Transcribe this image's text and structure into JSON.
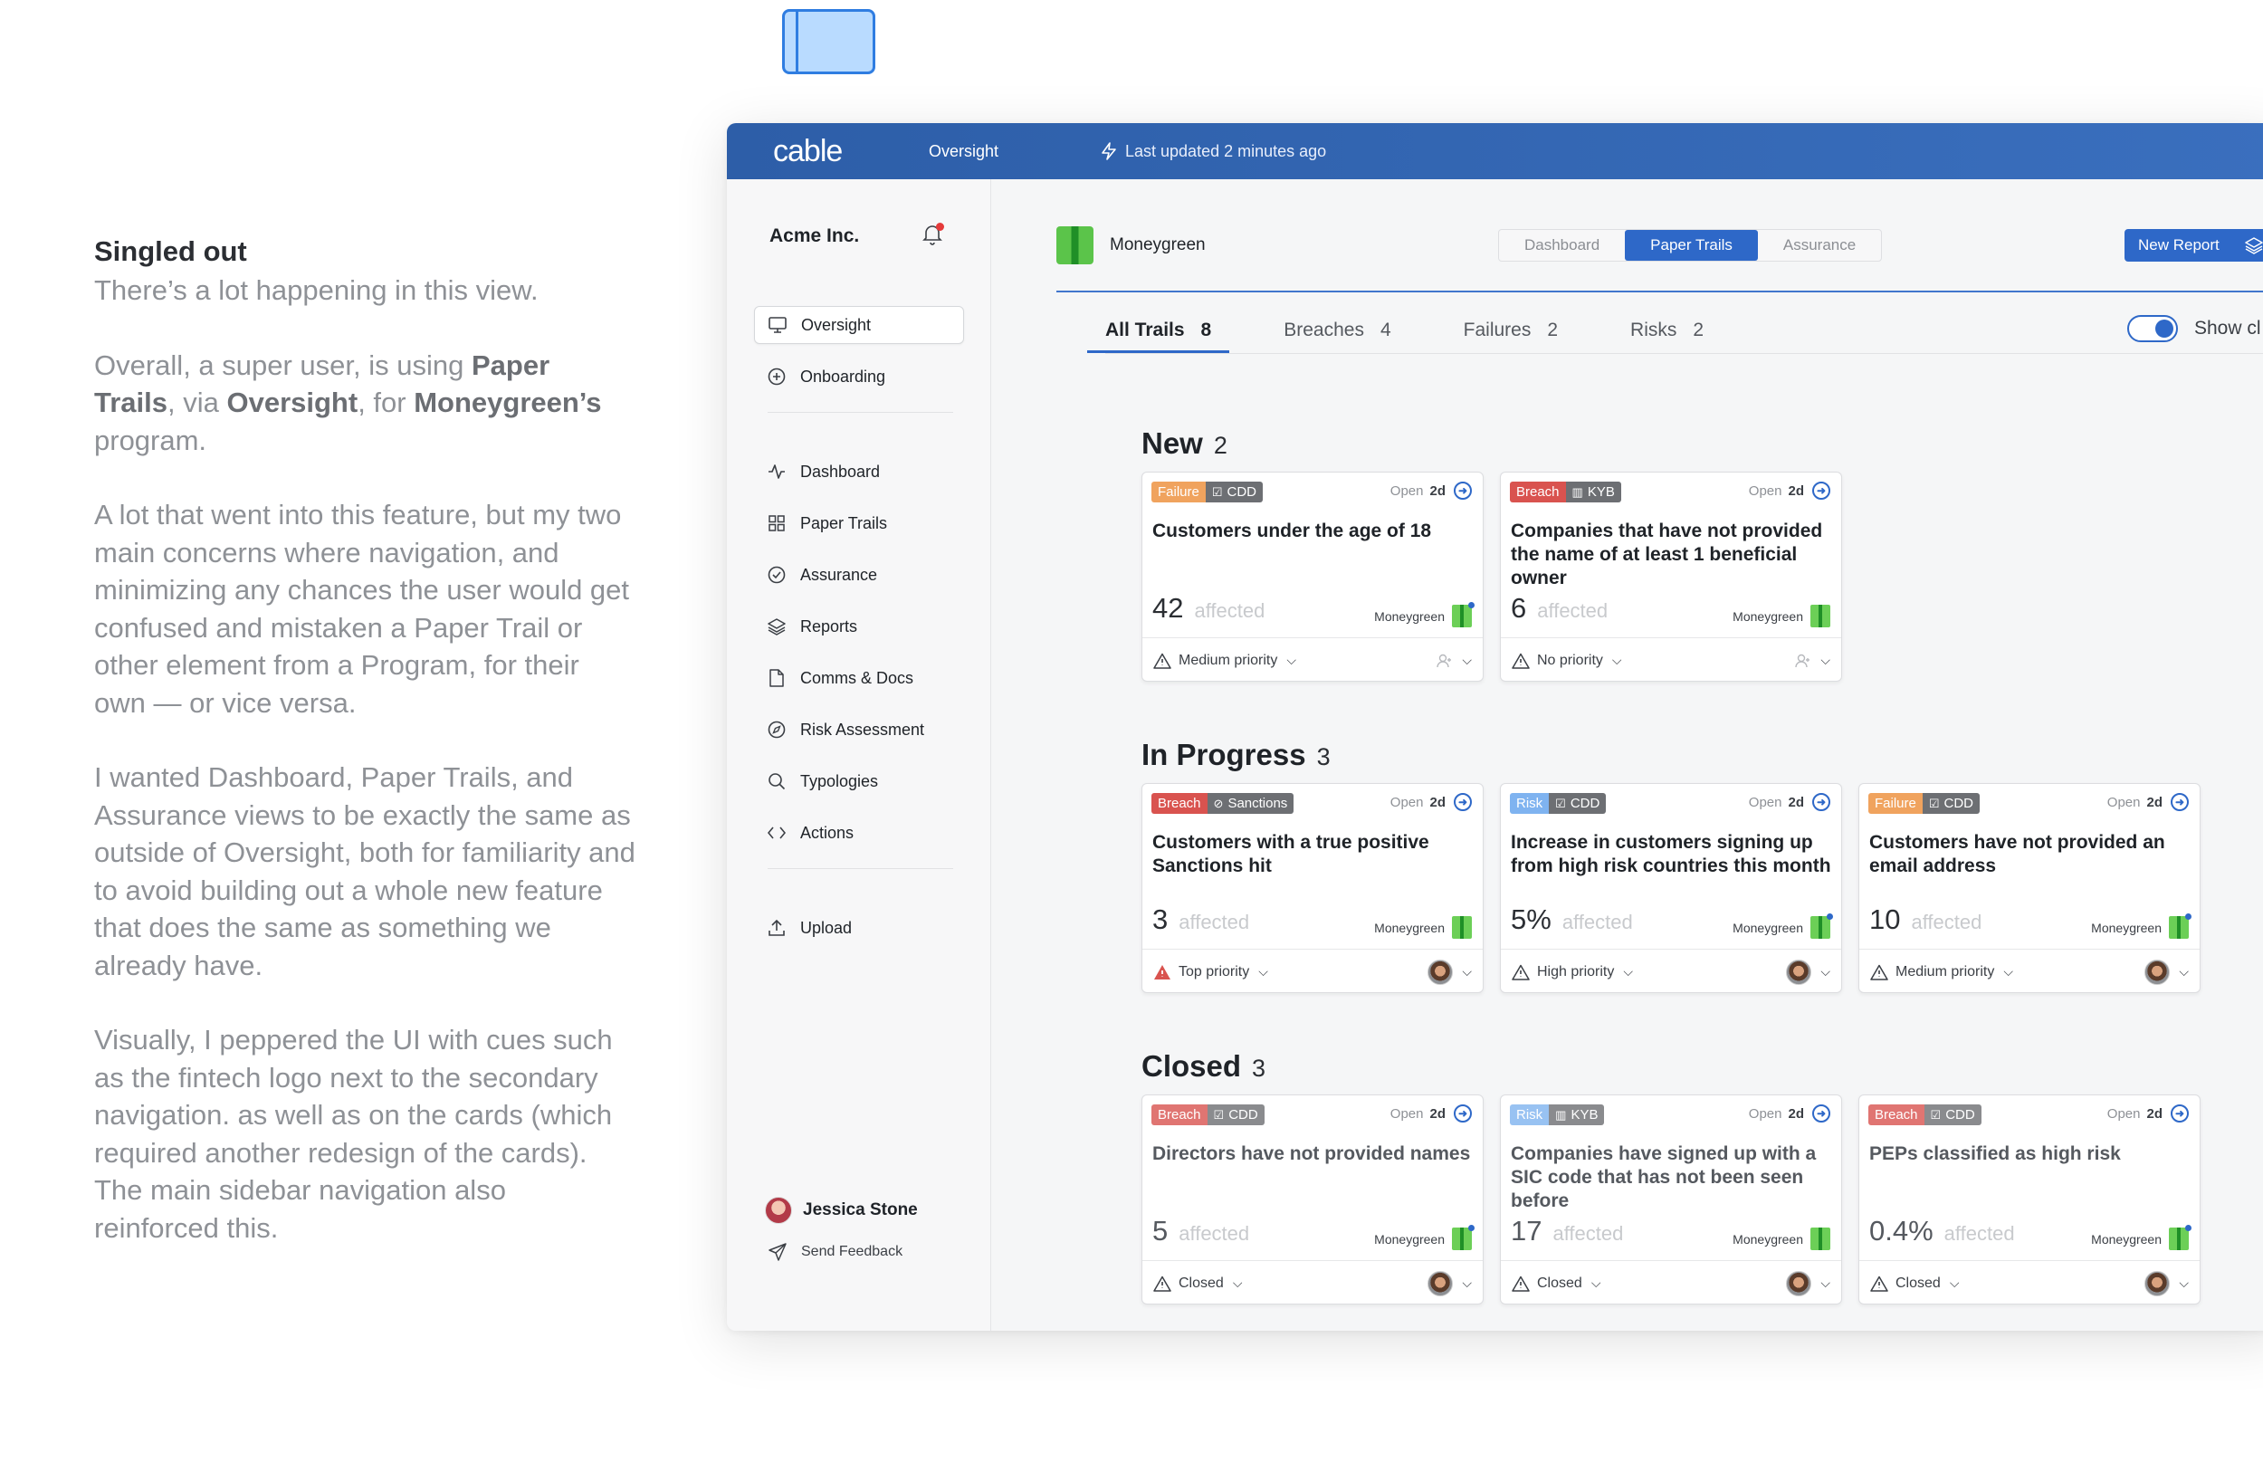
{
  "story": {
    "heading": "Singled out",
    "p1": "There’s a lot happening in this view.",
    "p2_a": "Overall, a super user, is using ",
    "p2_b": "Paper Trails",
    "p2_c": ", via ",
    "p2_d": "Oversight",
    "p2_e": ", for ",
    "p2_f": "Moneygreen’s",
    "p2_g": " program.",
    "p3": "A lot that went into this feature, but my two main concerns where navigation, and minimizing any chances the user would get confused and mistaken a Paper Trail or other element from a Program, for their own — or vice versa.",
    "p4": "I wanted Dashboard, Paper Trails, and Assurance views to be exactly the same as outside of Oversight, both for familiarity and to avoid building out a whole new feature that does the same as something we already have.",
    "p5": "Visually, I peppered the UI with cues such as the fintech logo next to the secondary navigation. as well as on the cards (which required another redesign of the cards). The main sidebar navigation also reinforced this."
  },
  "topbar": {
    "logo": "cable",
    "nav": "Oversight",
    "updated": "Last updated 2 minutes ago"
  },
  "sidebar": {
    "org": "Acme Inc.",
    "items": [
      {
        "label": "Oversight",
        "icon": "monitor-icon"
      },
      {
        "label": "Onboarding",
        "icon": "plus-circle-icon"
      },
      {
        "label": "Dashboard",
        "icon": "activity-icon"
      },
      {
        "label": "Paper Trails",
        "icon": "grid-icon"
      },
      {
        "label": "Assurance",
        "icon": "check-circle-icon"
      },
      {
        "label": "Reports",
        "icon": "layers-icon"
      },
      {
        "label": "Comms & Docs",
        "icon": "file-icon"
      },
      {
        "label": "Risk Assessment",
        "icon": "compass-icon"
      },
      {
        "label": "Typologies",
        "icon": "search-icon"
      },
      {
        "label": "Actions",
        "icon": "code-icon"
      },
      {
        "label": "Upload",
        "icon": "upload-icon"
      }
    ],
    "user": "Jessica Stone",
    "feedback": "Send Feedback"
  },
  "main": {
    "program": "Moneygreen",
    "segtabs": [
      "Dashboard",
      "Paper Trails",
      "Assurance"
    ],
    "new_report": "New Report",
    "tabs": [
      {
        "label": "All Trails",
        "count": "8"
      },
      {
        "label": "Breaches",
        "count": "4"
      },
      {
        "label": "Failures",
        "count": "2"
      },
      {
        "label": "Risks",
        "count": "2"
      }
    ],
    "show_toggle": "Show cl"
  },
  "colors": {
    "breach": "#d9534f",
    "failure": "#f0a35e",
    "risk": "#7fb3f0",
    "accent": "#2e68c8"
  },
  "sections": [
    {
      "title": "New",
      "count": "2",
      "cards": [
        {
          "kind": "Failure",
          "cat": "CDD",
          "open": "Open",
          "age": "2d",
          "title": "Customers under the age of 18",
          "num": "42",
          "aff": "affected",
          "org": "Moneygreen",
          "priority": "Medium priority"
        },
        {
          "kind": "Breach",
          "cat": "KYB",
          "open": "Open",
          "age": "2d",
          "title": "Companies that have not provided the name of at least 1 beneficial owner",
          "num": "6",
          "aff": "affected",
          "org": "Moneygreen",
          "priority": "No priority"
        }
      ]
    },
    {
      "title": "In Progress",
      "count": "3",
      "cards": [
        {
          "kind": "Breach",
          "cat": "Sanctions",
          "open": "Open",
          "age": "2d",
          "title": "Customers with a true positive Sanctions hit",
          "num": "3",
          "aff": "affected",
          "org": "Moneygreen",
          "priority": "Top priority"
        },
        {
          "kind": "Risk",
          "cat": "CDD",
          "open": "Open",
          "age": "2d",
          "title": "Increase in customers signing up from high risk countries this month",
          "num": "5%",
          "aff": "affected",
          "org": "Moneygreen",
          "priority": "High priority"
        },
        {
          "kind": "Failure",
          "cat": "CDD",
          "open": "Open",
          "age": "2d",
          "title": "Customers have not provided an email address",
          "num": "10",
          "aff": "affected",
          "org": "Moneygreen",
          "priority": "Medium priority"
        }
      ]
    },
    {
      "title": "Closed",
      "count": "3",
      "cards": [
        {
          "kind": "Breach",
          "cat": "CDD",
          "open": "Open",
          "age": "2d",
          "title": "Directors have not provided names",
          "num": "5",
          "aff": "affected",
          "org": "Moneygreen",
          "priority": "Closed"
        },
        {
          "kind": "Risk",
          "cat": "KYB",
          "open": "Open",
          "age": "2d",
          "title": "Companies have signed up with a SIC code that has not been seen before",
          "num": "17",
          "aff": "affected",
          "org": "Moneygreen",
          "priority": "Closed"
        },
        {
          "kind": "Breach",
          "cat": "CDD",
          "open": "Open",
          "age": "2d",
          "title": "PEPs classified as high risk",
          "num": "0.4%",
          "aff": "affected",
          "org": "Moneygreen",
          "priority": "Closed"
        }
      ]
    }
  ]
}
